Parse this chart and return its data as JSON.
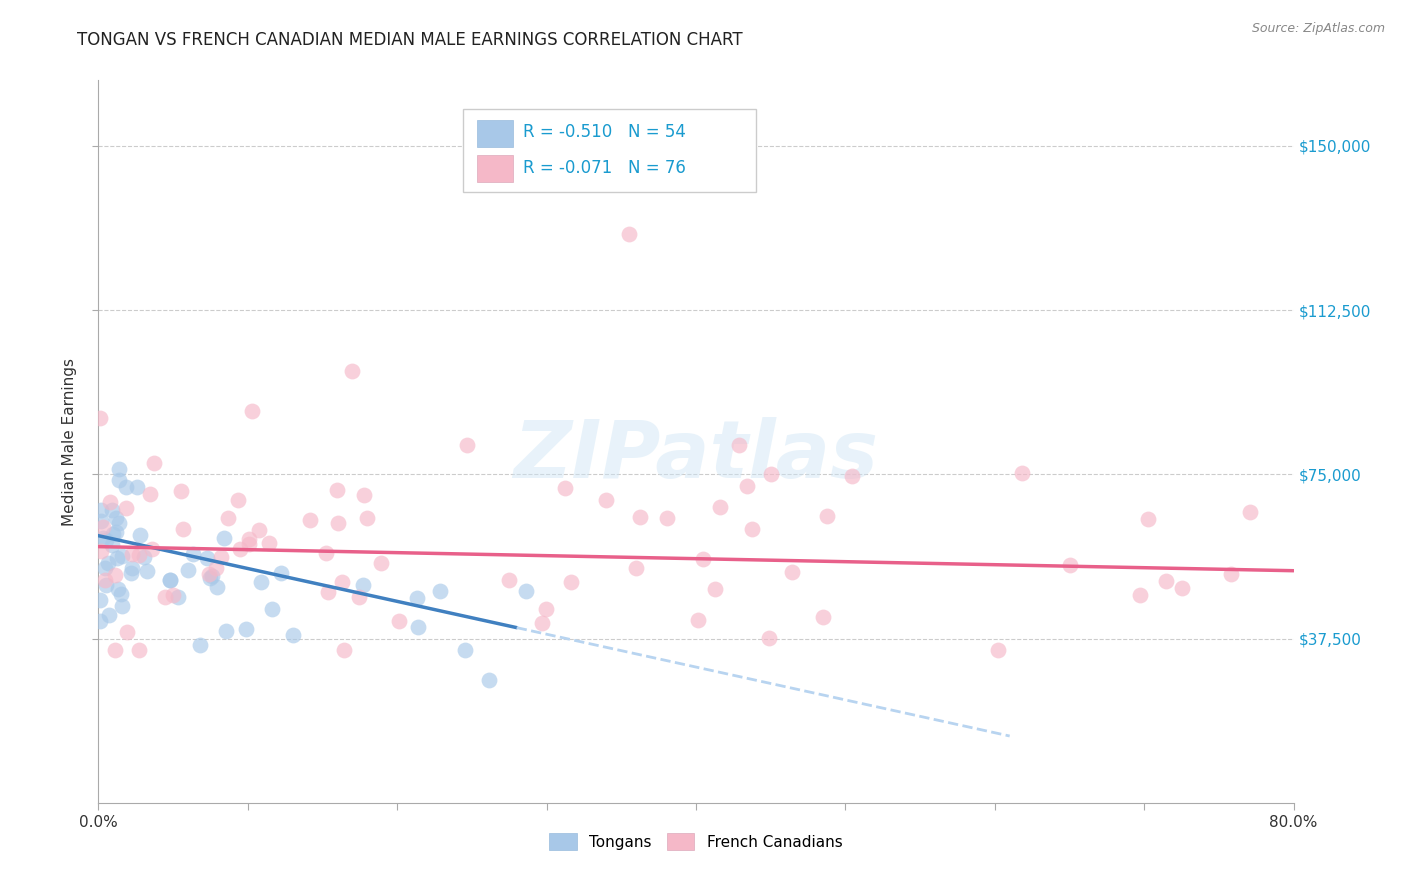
{
  "title": "TONGAN VS FRENCH CANADIAN MEDIAN MALE EARNINGS CORRELATION CHART",
  "source": "Source: ZipAtlas.com",
  "ylabel": "Median Male Earnings",
  "ytick_labels": [
    "$37,500",
    "$75,000",
    "$112,500",
    "$150,000"
  ],
  "ytick_values": [
    37500,
    75000,
    112500,
    150000
  ],
  "ymin": 0,
  "ymax": 165000,
  "xmin": 0.0,
  "xmax": 0.8,
  "legend_r1_label": "R = ",
  "legend_r1_val": "-0.510",
  "legend_n1_label": "N = ",
  "legend_n1_val": "54",
  "legend_r2_label": "R = ",
  "legend_r2_val": "-0.071",
  "legend_n2_label": "N = ",
  "legend_n2_val": "76",
  "watermark": "ZIPatlas",
  "color_blue": "#a8c8e8",
  "color_blue_dark": "#5a9fd4",
  "color_pink": "#f5b8c8",
  "color_pink_line": "#e8608a",
  "color_blue_line": "#4080c0",
  "color_dashed": "#b8d4f0",
  "color_ytick": "#1a9bcf",
  "color_grid": "#cccccc",
  "color_title": "#222222",
  "color_source": "#888888"
}
